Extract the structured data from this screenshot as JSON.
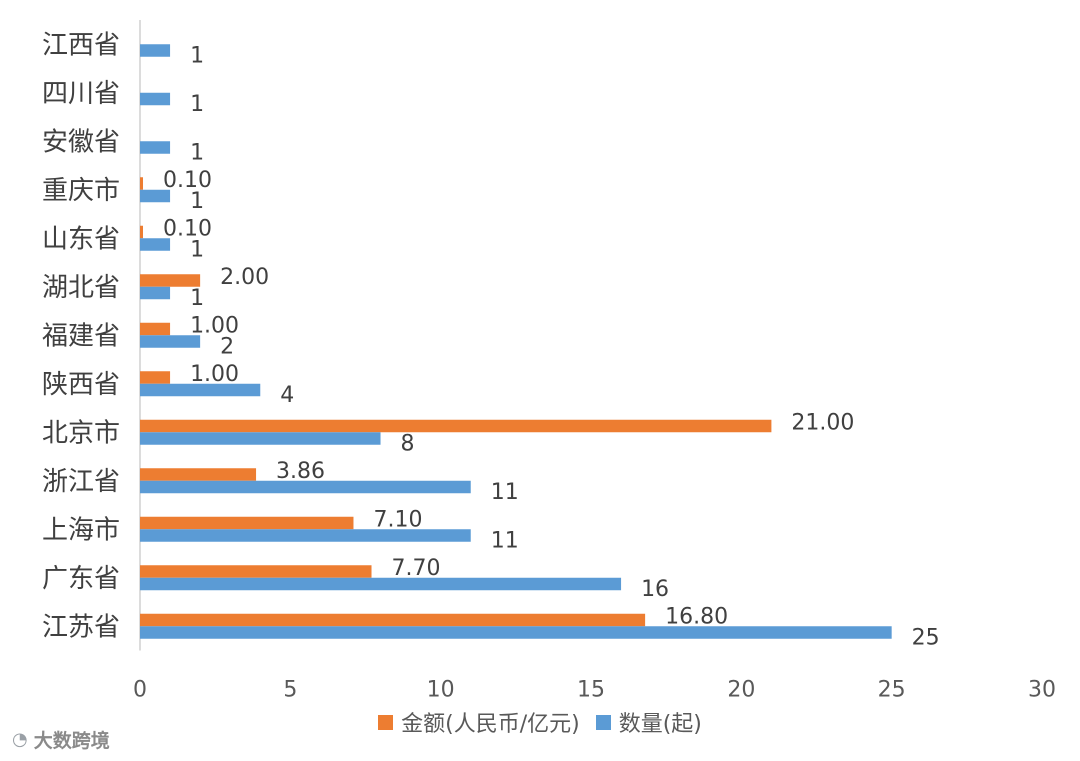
{
  "chart_data": {
    "type": "bar",
    "orientation": "horizontal",
    "categories": [
      "江西省",
      "四川省",
      "安徽省",
      "重庆市",
      "山东省",
      "湖北省",
      "福建省",
      "陕西省",
      "北京市",
      "浙江省",
      "上海市",
      "广东省",
      "江苏省"
    ],
    "series": [
      {
        "name": "金额(人民币/亿元)",
        "color": "#ED7D31",
        "values": [
          null,
          null,
          null,
          0.1,
          0.1,
          2.0,
          1.0,
          1.0,
          21.0,
          3.86,
          7.1,
          7.7,
          16.8
        ],
        "labels": [
          "",
          "",
          "",
          "0.10",
          "0.10",
          "2.00",
          "1.00",
          "1.00",
          "21.00",
          "3.86",
          "7.10",
          "7.70",
          "16.80"
        ]
      },
      {
        "name": "数量(起)",
        "color": "#5B9BD5",
        "values": [
          1,
          1,
          1,
          1,
          1,
          1,
          2,
          4,
          8,
          11,
          11,
          16,
          25
        ],
        "labels": [
          "1",
          "1",
          "1",
          "1",
          "1",
          "1",
          "2",
          "4",
          "8",
          "11",
          "11",
          "16",
          "25"
        ]
      }
    ],
    "xlim": [
      0,
      30
    ],
    "xticks": [
      "0",
      "5",
      "10",
      "15",
      "20",
      "25",
      "30"
    ],
    "grid": false,
    "legend_position": "bottom"
  },
  "brand": {
    "text": "大数跨境",
    "icon": "weibo-icon"
  }
}
